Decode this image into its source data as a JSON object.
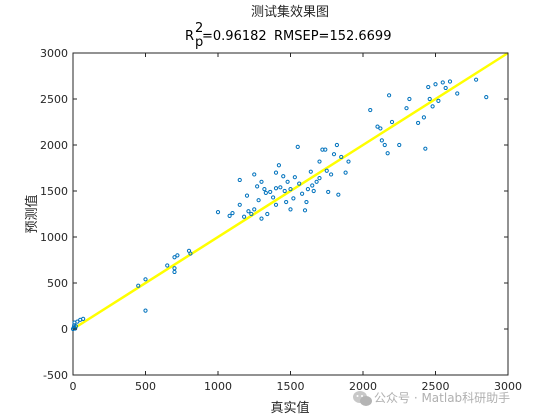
{
  "chart_data": {
    "type": "scatter",
    "title": "测试集效果图",
    "subtitle": {
      "r_symbol": "R",
      "r_sup": "2",
      "r_sub": "p",
      "r_value": "=0.96182",
      "rmsep": "RMSEP=152.6699"
    },
    "xlabel": "真实值",
    "ylabel": "预测值",
    "xlim": [
      0,
      3000
    ],
    "ylim": [
      -500,
      3000
    ],
    "xticks": [
      "0",
      "500",
      "1000",
      "1500",
      "2000",
      "2500",
      "3000"
    ],
    "yticks": [
      "-500",
      "0",
      "500",
      "1000",
      "1500",
      "2000",
      "2500",
      "3000"
    ],
    "grid": false,
    "marker_color": "#0072BD",
    "line_color": "#FFFF00",
    "fit_line": {
      "x": [
        0,
        3000
      ],
      "y": [
        0,
        3000
      ]
    },
    "points": [
      [
        0,
        0
      ],
      [
        5,
        15
      ],
      [
        8,
        40
      ],
      [
        10,
        70
      ],
      [
        15,
        5
      ],
      [
        20,
        30
      ],
      [
        30,
        80
      ],
      [
        50,
        100
      ],
      [
        70,
        110
      ],
      [
        450,
        470
      ],
      [
        500,
        540
      ],
      [
        500,
        200
      ],
      [
        650,
        690
      ],
      [
        700,
        620
      ],
      [
        700,
        660
      ],
      [
        700,
        780
      ],
      [
        720,
        800
      ],
      [
        800,
        850
      ],
      [
        810,
        820
      ],
      [
        1000,
        1270
      ],
      [
        1080,
        1230
      ],
      [
        1100,
        1260
      ],
      [
        1150,
        1620
      ],
      [
        1150,
        1350
      ],
      [
        1180,
        1220
      ],
      [
        1200,
        1450
      ],
      [
        1210,
        1280
      ],
      [
        1230,
        1250
      ],
      [
        1250,
        1300
      ],
      [
        1250,
        1680
      ],
      [
        1270,
        1550
      ],
      [
        1280,
        1400
      ],
      [
        1300,
        1600
      ],
      [
        1300,
        1200
      ],
      [
        1320,
        1520
      ],
      [
        1330,
        1480
      ],
      [
        1340,
        1250
      ],
      [
        1360,
        1490
      ],
      [
        1380,
        1430
      ],
      [
        1400,
        1700
      ],
      [
        1400,
        1530
      ],
      [
        1400,
        1350
      ],
      [
        1420,
        1780
      ],
      [
        1430,
        1540
      ],
      [
        1450,
        1660
      ],
      [
        1460,
        1500
      ],
      [
        1470,
        1380
      ],
      [
        1480,
        1600
      ],
      [
        1500,
        1520
      ],
      [
        1500,
        1300
      ],
      [
        1520,
        1420
      ],
      [
        1530,
        1650
      ],
      [
        1550,
        1980
      ],
      [
        1560,
        1580
      ],
      [
        1580,
        1470
      ],
      [
        1600,
        1290
      ],
      [
        1610,
        1380
      ],
      [
        1620,
        1520
      ],
      [
        1640,
        1710
      ],
      [
        1650,
        1560
      ],
      [
        1660,
        1500
      ],
      [
        1680,
        1600
      ],
      [
        1700,
        1820
      ],
      [
        1700,
        1640
      ],
      [
        1720,
        1950
      ],
      [
        1740,
        1950
      ],
      [
        1750,
        1720
      ],
      [
        1760,
        1490
      ],
      [
        1780,
        1680
      ],
      [
        1800,
        1900
      ],
      [
        1820,
        2000
      ],
      [
        1830,
        1460
      ],
      [
        1850,
        1870
      ],
      [
        1880,
        1700
      ],
      [
        1900,
        1820
      ],
      [
        2050,
        2380
      ],
      [
        2100,
        2200
      ],
      [
        2120,
        2180
      ],
      [
        2130,
        2050
      ],
      [
        2150,
        2000
      ],
      [
        2170,
        1910
      ],
      [
        2180,
        2540
      ],
      [
        2200,
        2250
      ],
      [
        2250,
        2000
      ],
      [
        2300,
        2400
      ],
      [
        2320,
        2500
      ],
      [
        2380,
        2240
      ],
      [
        2420,
        2300
      ],
      [
        2430,
        1960
      ],
      [
        2450,
        2630
      ],
      [
        2460,
        2500
      ],
      [
        2480,
        2420
      ],
      [
        2500,
        2660
      ],
      [
        2520,
        2480
      ],
      [
        2550,
        2680
      ],
      [
        2570,
        2620
      ],
      [
        2600,
        2690
      ],
      [
        2650,
        2560
      ],
      [
        2780,
        2710
      ],
      [
        2850,
        2520
      ]
    ]
  },
  "watermark": "公众号 · Matlab科研助手",
  "watermark_icon": "wechat-icon"
}
